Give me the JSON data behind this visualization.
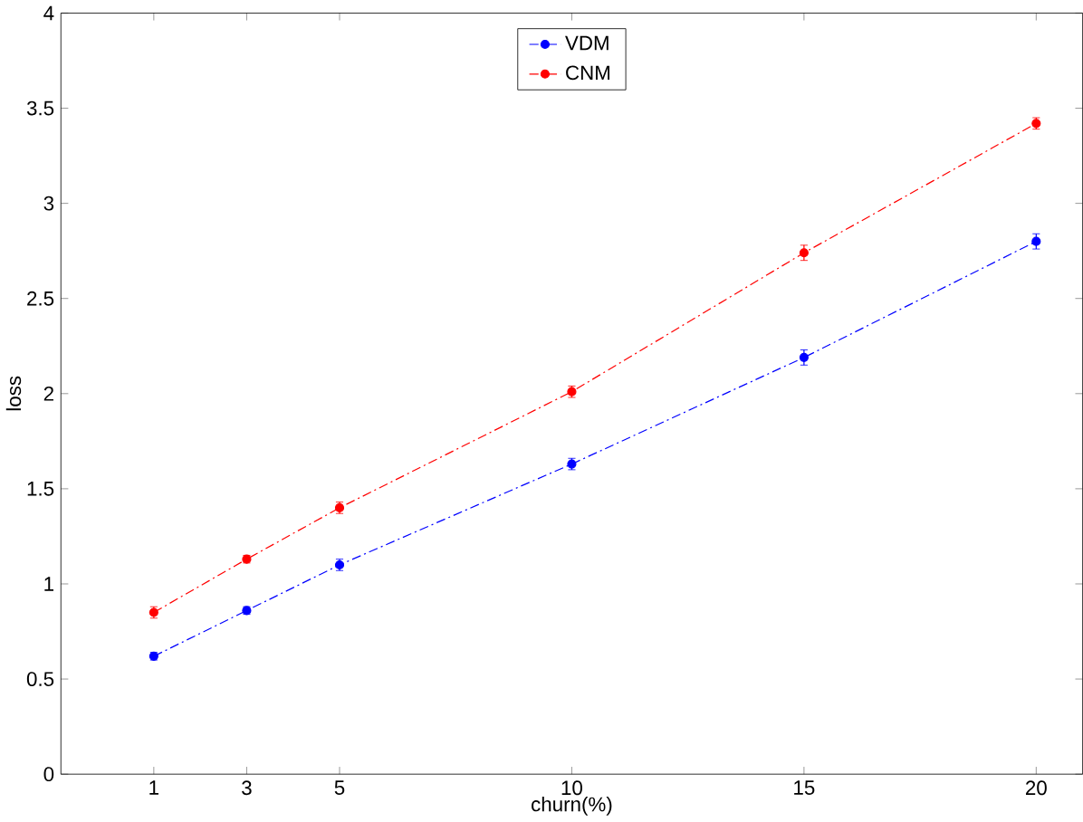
{
  "chart_data": {
    "type": "line",
    "xlabel": "churn(%)",
    "ylabel": "loss",
    "x": [
      1,
      3,
      5,
      10,
      15,
      20
    ],
    "series": [
      {
        "name": "VDM",
        "color": "#0000ff",
        "values": [
          0.62,
          0.86,
          1.1,
          1.63,
          2.19,
          2.8
        ],
        "errors": [
          0.02,
          0.02,
          0.03,
          0.03,
          0.04,
          0.04
        ]
      },
      {
        "name": "CNM",
        "color": "#ff0000",
        "values": [
          0.85,
          1.13,
          1.4,
          2.01,
          2.74,
          3.42
        ],
        "errors": [
          0.03,
          0.02,
          0.03,
          0.03,
          0.04,
          0.03
        ]
      }
    ],
    "xlim": [
      -1,
      21
    ],
    "ylim": [
      0,
      4
    ],
    "xticks": [
      1,
      3,
      5,
      10,
      15,
      20
    ],
    "yticks": [
      0,
      0.5,
      1,
      1.5,
      2,
      2.5,
      3,
      3.5,
      4
    ],
    "legend": "top",
    "marker": "circle",
    "line_style": "dashdot",
    "grid": false
  }
}
